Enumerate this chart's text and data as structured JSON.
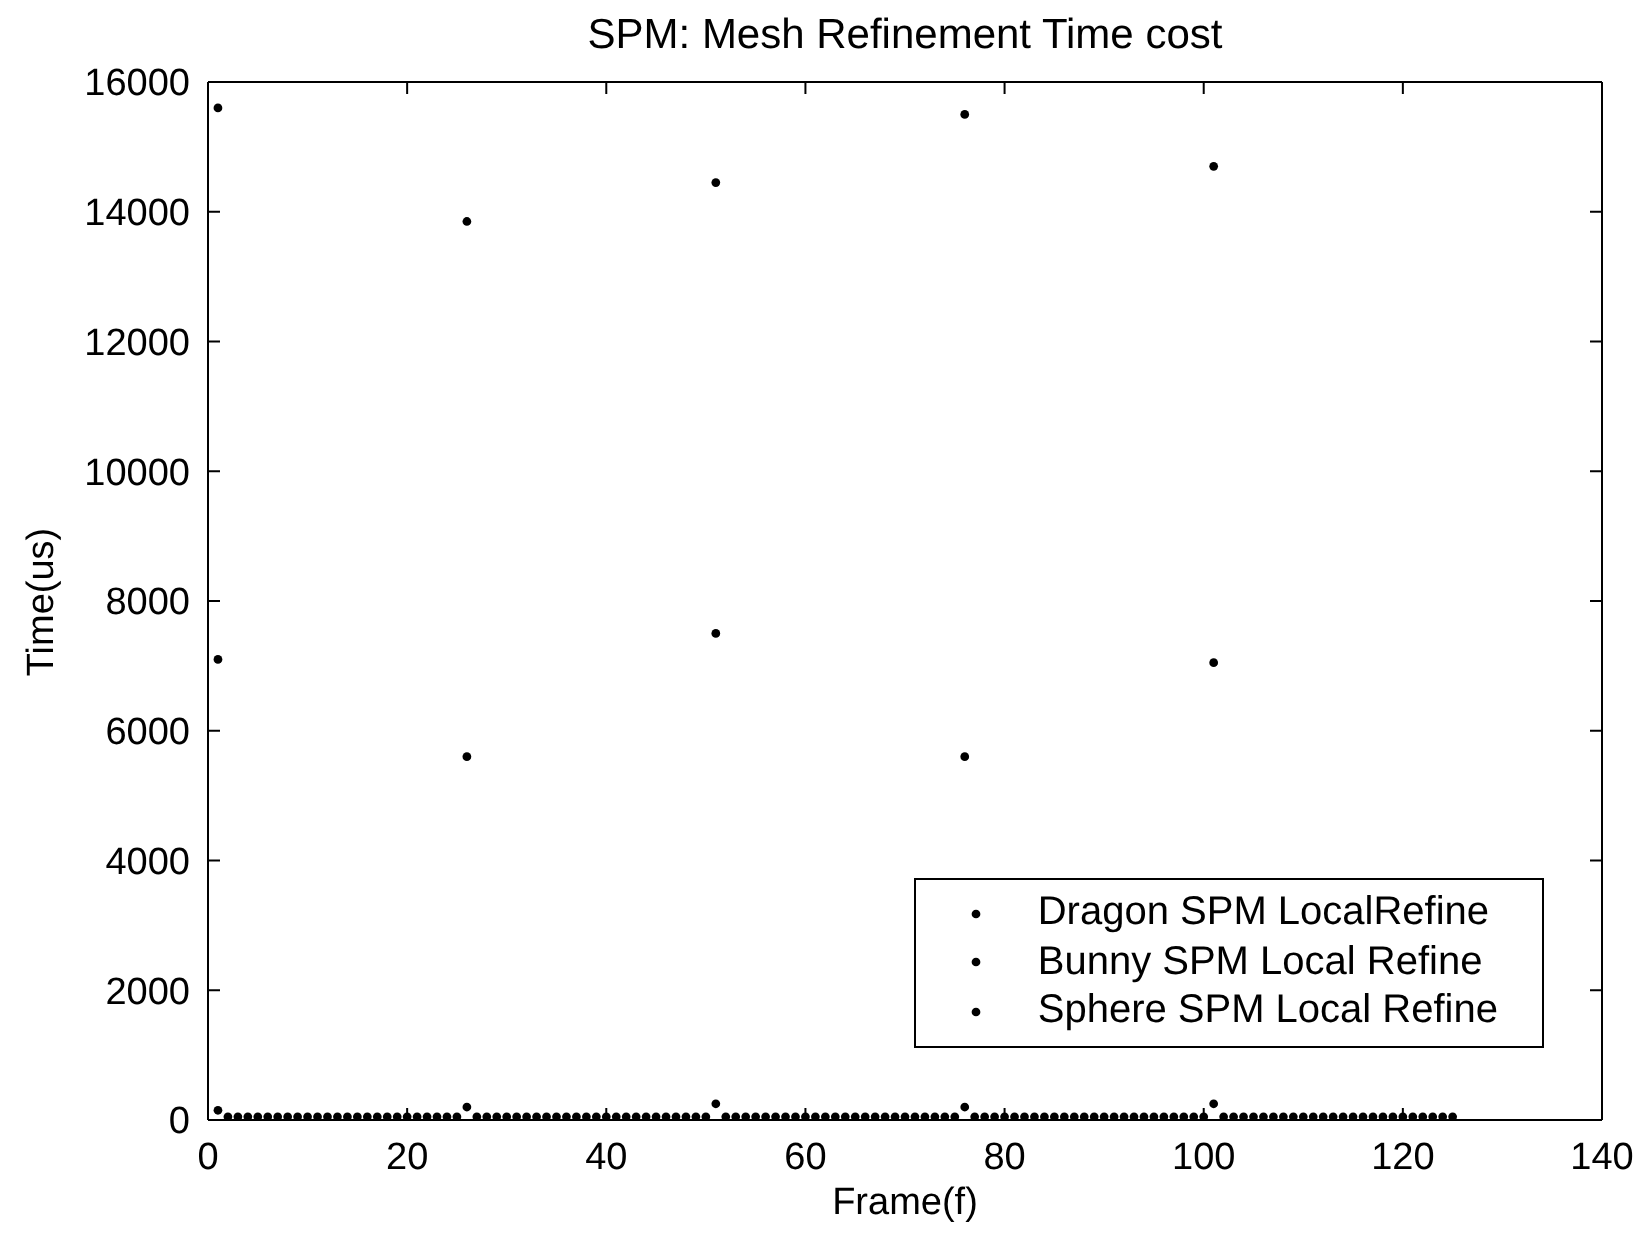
{
  "chart_data": {
    "type": "scatter",
    "title": "SPM: Mesh Refinement Time cost",
    "xlabel": "Frame(f)",
    "ylabel": "Time(us)",
    "xlim": [
      0,
      140
    ],
    "xticks": [
      0,
      20,
      40,
      60,
      80,
      100,
      120,
      140
    ],
    "ylim": [
      0,
      16000
    ],
    "yticks": [
      0,
      2000,
      4000,
      6000,
      8000,
      10000,
      12000,
      14000,
      16000
    ],
    "legend": "bottom right",
    "marker": "circle",
    "series": [
      {
        "name": "Dragon SPM LocalRefine",
        "color": "#000000",
        "x": [
          1,
          26,
          51,
          76,
          101
        ],
        "values": [
          15600,
          13850,
          14450,
          15500,
          14700
        ]
      },
      {
        "name": "Bunny SPM Local Refine",
        "color": "#000000",
        "x": [
          1,
          26,
          51,
          76,
          101
        ],
        "values": [
          7100,
          5600,
          7500,
          5600,
          7050
        ]
      },
      {
        "name": "Sphere SPM Local Refine",
        "color": "#000000",
        "x": [
          1,
          2,
          3,
          4,
          5,
          6,
          7,
          8,
          9,
          10,
          11,
          12,
          13,
          14,
          15,
          16,
          17,
          18,
          19,
          20,
          21,
          22,
          23,
          24,
          25,
          26,
          27,
          28,
          29,
          30,
          31,
          32,
          33,
          34,
          35,
          36,
          37,
          38,
          39,
          40,
          41,
          42,
          43,
          44,
          45,
          46,
          47,
          48,
          49,
          50,
          51,
          52,
          53,
          54,
          55,
          56,
          57,
          58,
          59,
          60,
          61,
          62,
          63,
          64,
          65,
          66,
          67,
          68,
          69,
          70,
          71,
          72,
          73,
          74,
          75,
          76,
          77,
          78,
          79,
          80,
          81,
          82,
          83,
          84,
          85,
          86,
          87,
          88,
          89,
          90,
          91,
          92,
          93,
          94,
          95,
          96,
          97,
          98,
          99,
          100,
          101,
          102,
          103,
          104,
          105,
          106,
          107,
          108,
          109,
          110,
          111,
          112,
          113,
          114,
          115,
          116,
          117,
          118,
          119,
          120,
          121,
          122,
          123,
          124,
          125
        ],
        "values": [
          150,
          50,
          50,
          50,
          50,
          50,
          50,
          50,
          50,
          50,
          50,
          50,
          50,
          50,
          50,
          50,
          50,
          50,
          50,
          50,
          50,
          50,
          50,
          50,
          50,
          200,
          50,
          50,
          50,
          50,
          50,
          50,
          50,
          50,
          50,
          50,
          50,
          50,
          50,
          50,
          50,
          50,
          50,
          50,
          50,
          50,
          50,
          50,
          50,
          50,
          250,
          50,
          50,
          50,
          50,
          50,
          50,
          50,
          50,
          50,
          50,
          50,
          50,
          50,
          50,
          50,
          50,
          50,
          50,
          50,
          50,
          50,
          50,
          50,
          50,
          200,
          50,
          50,
          50,
          50,
          50,
          50,
          50,
          50,
          50,
          50,
          50,
          50,
          50,
          50,
          50,
          50,
          50,
          50,
          50,
          50,
          50,
          50,
          50,
          50,
          250,
          50,
          50,
          50,
          50,
          50,
          50,
          50,
          50,
          50,
          50,
          50,
          50,
          50,
          50,
          50,
          50,
          50,
          50,
          50,
          50,
          50,
          50,
          50,
          50
        ]
      }
    ]
  }
}
